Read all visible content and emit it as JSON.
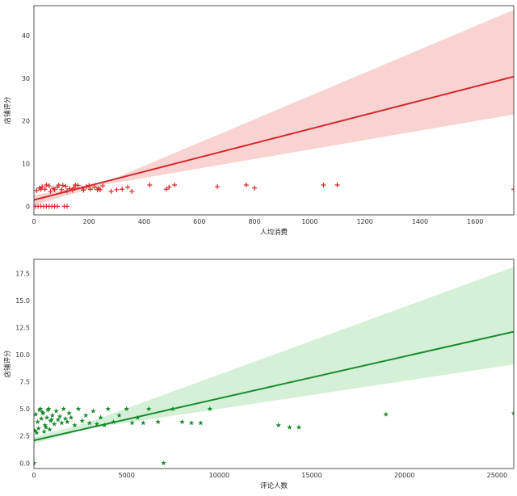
{
  "chart_data": [
    {
      "type": "scatter",
      "xlabel": "人均消费",
      "ylabel": "店铺评分",
      "xlim": [
        0,
        1740
      ],
      "ylim": [
        -2,
        47
      ],
      "xticks": [
        0,
        200,
        400,
        600,
        800,
        1000,
        1200,
        1400,
        1600
      ],
      "yticks": [
        0,
        10,
        20,
        30,
        40
      ],
      "tick_labels_x": [
        "0",
        "200",
        "400",
        "600",
        "800",
        "1000",
        "1200",
        "1400",
        "1600"
      ],
      "tick_labels_y": [
        "0",
        "10",
        "20",
        "30",
        "40"
      ],
      "marker": "plus",
      "color": "#d62728",
      "band_color": "#f7c3c3",
      "regression": {
        "intercept": 1.5,
        "slope": 0.0166
      },
      "confidence_band": {
        "x": [
          0,
          250,
          1740
        ],
        "lower": [
          0.3,
          5.0,
          21.5
        ],
        "upper": [
          2.6,
          5.4,
          46.0
        ]
      },
      "points": [
        [
          20,
          4.3
        ],
        [
          30,
          4.6
        ],
        [
          40,
          4.0
        ],
        [
          55,
          4.8
        ],
        [
          70,
          4.2
        ],
        [
          85,
          4.5
        ],
        [
          100,
          3.9
        ],
        [
          115,
          4.7
        ],
        [
          130,
          4.1
        ],
        [
          145,
          4.4
        ],
        [
          160,
          4.9
        ],
        [
          175,
          4.3
        ],
        [
          190,
          4.6
        ],
        [
          205,
          4.0
        ],
        [
          220,
          4.5
        ],
        [
          235,
          4.2
        ],
        [
          250,
          4.8
        ],
        [
          10,
          3.7
        ],
        [
          60,
          3.5
        ],
        [
          90,
          5.0
        ],
        [
          120,
          3.6
        ],
        [
          150,
          5.0
        ],
        [
          180,
          3.8
        ],
        [
          45,
          5.0
        ],
        [
          75,
          3.9
        ],
        [
          105,
          4.9
        ],
        [
          140,
          3.8
        ],
        [
          200,
          4.9
        ],
        [
          230,
          3.9
        ],
        [
          25,
          4.0
        ],
        [
          5,
          0
        ],
        [
          15,
          0
        ],
        [
          25,
          0
        ],
        [
          35,
          0
        ],
        [
          45,
          0
        ],
        [
          55,
          0
        ],
        [
          65,
          0
        ],
        [
          75,
          0
        ],
        [
          85,
          0
        ],
        [
          110,
          0
        ],
        [
          120,
          0
        ],
        [
          240,
          3.9
        ],
        [
          280,
          3.5
        ],
        [
          300,
          3.9
        ],
        [
          320,
          4.0
        ],
        [
          340,
          4.5
        ],
        [
          355,
          3.5
        ],
        [
          420,
          5.0
        ],
        [
          480,
          4.0
        ],
        [
          490,
          4.5
        ],
        [
          510,
          5.0
        ],
        [
          665,
          4.6
        ],
        [
          770,
          5.0
        ],
        [
          800,
          4.3
        ],
        [
          1050,
          5.0
        ],
        [
          1100,
          5.0
        ],
        [
          1740,
          4.0
        ]
      ]
    },
    {
      "type": "scatter",
      "xlabel": "评论人数",
      "ylabel": "店铺评分",
      "xlim": [
        0,
        25900
      ],
      "ylim": [
        -0.5,
        18.8
      ],
      "xticks": [
        0,
        5000,
        10000,
        15000,
        20000,
        25000
      ],
      "yticks": [
        0,
        2.5,
        5,
        7.5,
        10,
        12.5,
        15,
        17.5
      ],
      "tick_labels_x": [
        "0",
        "5000",
        "10000",
        "15000",
        "20000",
        "25000"
      ],
      "tick_labels_y": [
        "0.0",
        "2.5",
        "5.0",
        "7.5",
        "10.0",
        "12.5",
        "15.0",
        "17.5"
      ],
      "marker": "star",
      "color": "#1a8a2e",
      "band_color": "#c6ebc9",
      "regression": {
        "intercept": 2.1,
        "slope": 0.000387
      },
      "confidence_band": {
        "x": [
          0,
          3000,
          25900
        ],
        "lower": [
          1.8,
          3.2,
          9.1
        ],
        "upper": [
          2.4,
          3.8,
          18.1
        ]
      },
      "points": [
        [
          100,
          4.5
        ],
        [
          200,
          3.8
        ],
        [
          300,
          4.9
        ],
        [
          400,
          4.1
        ],
        [
          500,
          4.6
        ],
        [
          600,
          3.5
        ],
        [
          700,
          4.2
        ],
        [
          800,
          5.0
        ],
        [
          900,
          3.9
        ],
        [
          1000,
          4.4
        ],
        [
          1100,
          3.6
        ],
        [
          1200,
          4.8
        ],
        [
          1300,
          4.0
        ],
        [
          1400,
          4.3
        ],
        [
          1500,
          3.7
        ],
        [
          1600,
          5.0
        ],
        [
          1700,
          4.1
        ],
        [
          1800,
          3.8
        ],
        [
          1900,
          4.6
        ],
        [
          2000,
          4.2
        ],
        [
          2200,
          3.5
        ],
        [
          2400,
          5.0
        ],
        [
          2600,
          3.9
        ],
        [
          2800,
          4.4
        ],
        [
          3000,
          3.7
        ],
        [
          3200,
          4.8
        ],
        [
          3400,
          3.6
        ],
        [
          3600,
          4.2
        ],
        [
          3800,
          3.5
        ],
        [
          4000,
          5.0
        ],
        [
          4300,
          3.8
        ],
        [
          4600,
          4.4
        ],
        [
          5000,
          5.0
        ],
        [
          5300,
          3.7
        ],
        [
          5600,
          4.2
        ],
        [
          5900,
          3.7
        ],
        [
          6200,
          5.0
        ],
        [
          6700,
          3.8
        ],
        [
          7000,
          0
        ],
        [
          7500,
          5.0
        ],
        [
          8000,
          3.8
        ],
        [
          8500,
          3.7
        ],
        [
          9000,
          3.7
        ],
        [
          9500,
          5.0
        ],
        [
          13200,
          3.5
        ],
        [
          13800,
          3.3
        ],
        [
          14300,
          3.3
        ],
        [
          19000,
          4.5
        ],
        [
          25900,
          4.6
        ],
        [
          0,
          0
        ],
        [
          50,
          3.0
        ],
        [
          150,
          2.8
        ],
        [
          250,
          3.2
        ],
        [
          350,
          5.0
        ],
        [
          450,
          4.7
        ],
        [
          550,
          2.9
        ],
        [
          650,
          3.3
        ],
        [
          750,
          4.9
        ],
        [
          850,
          3.1
        ],
        [
          950,
          4.0
        ]
      ]
    }
  ]
}
